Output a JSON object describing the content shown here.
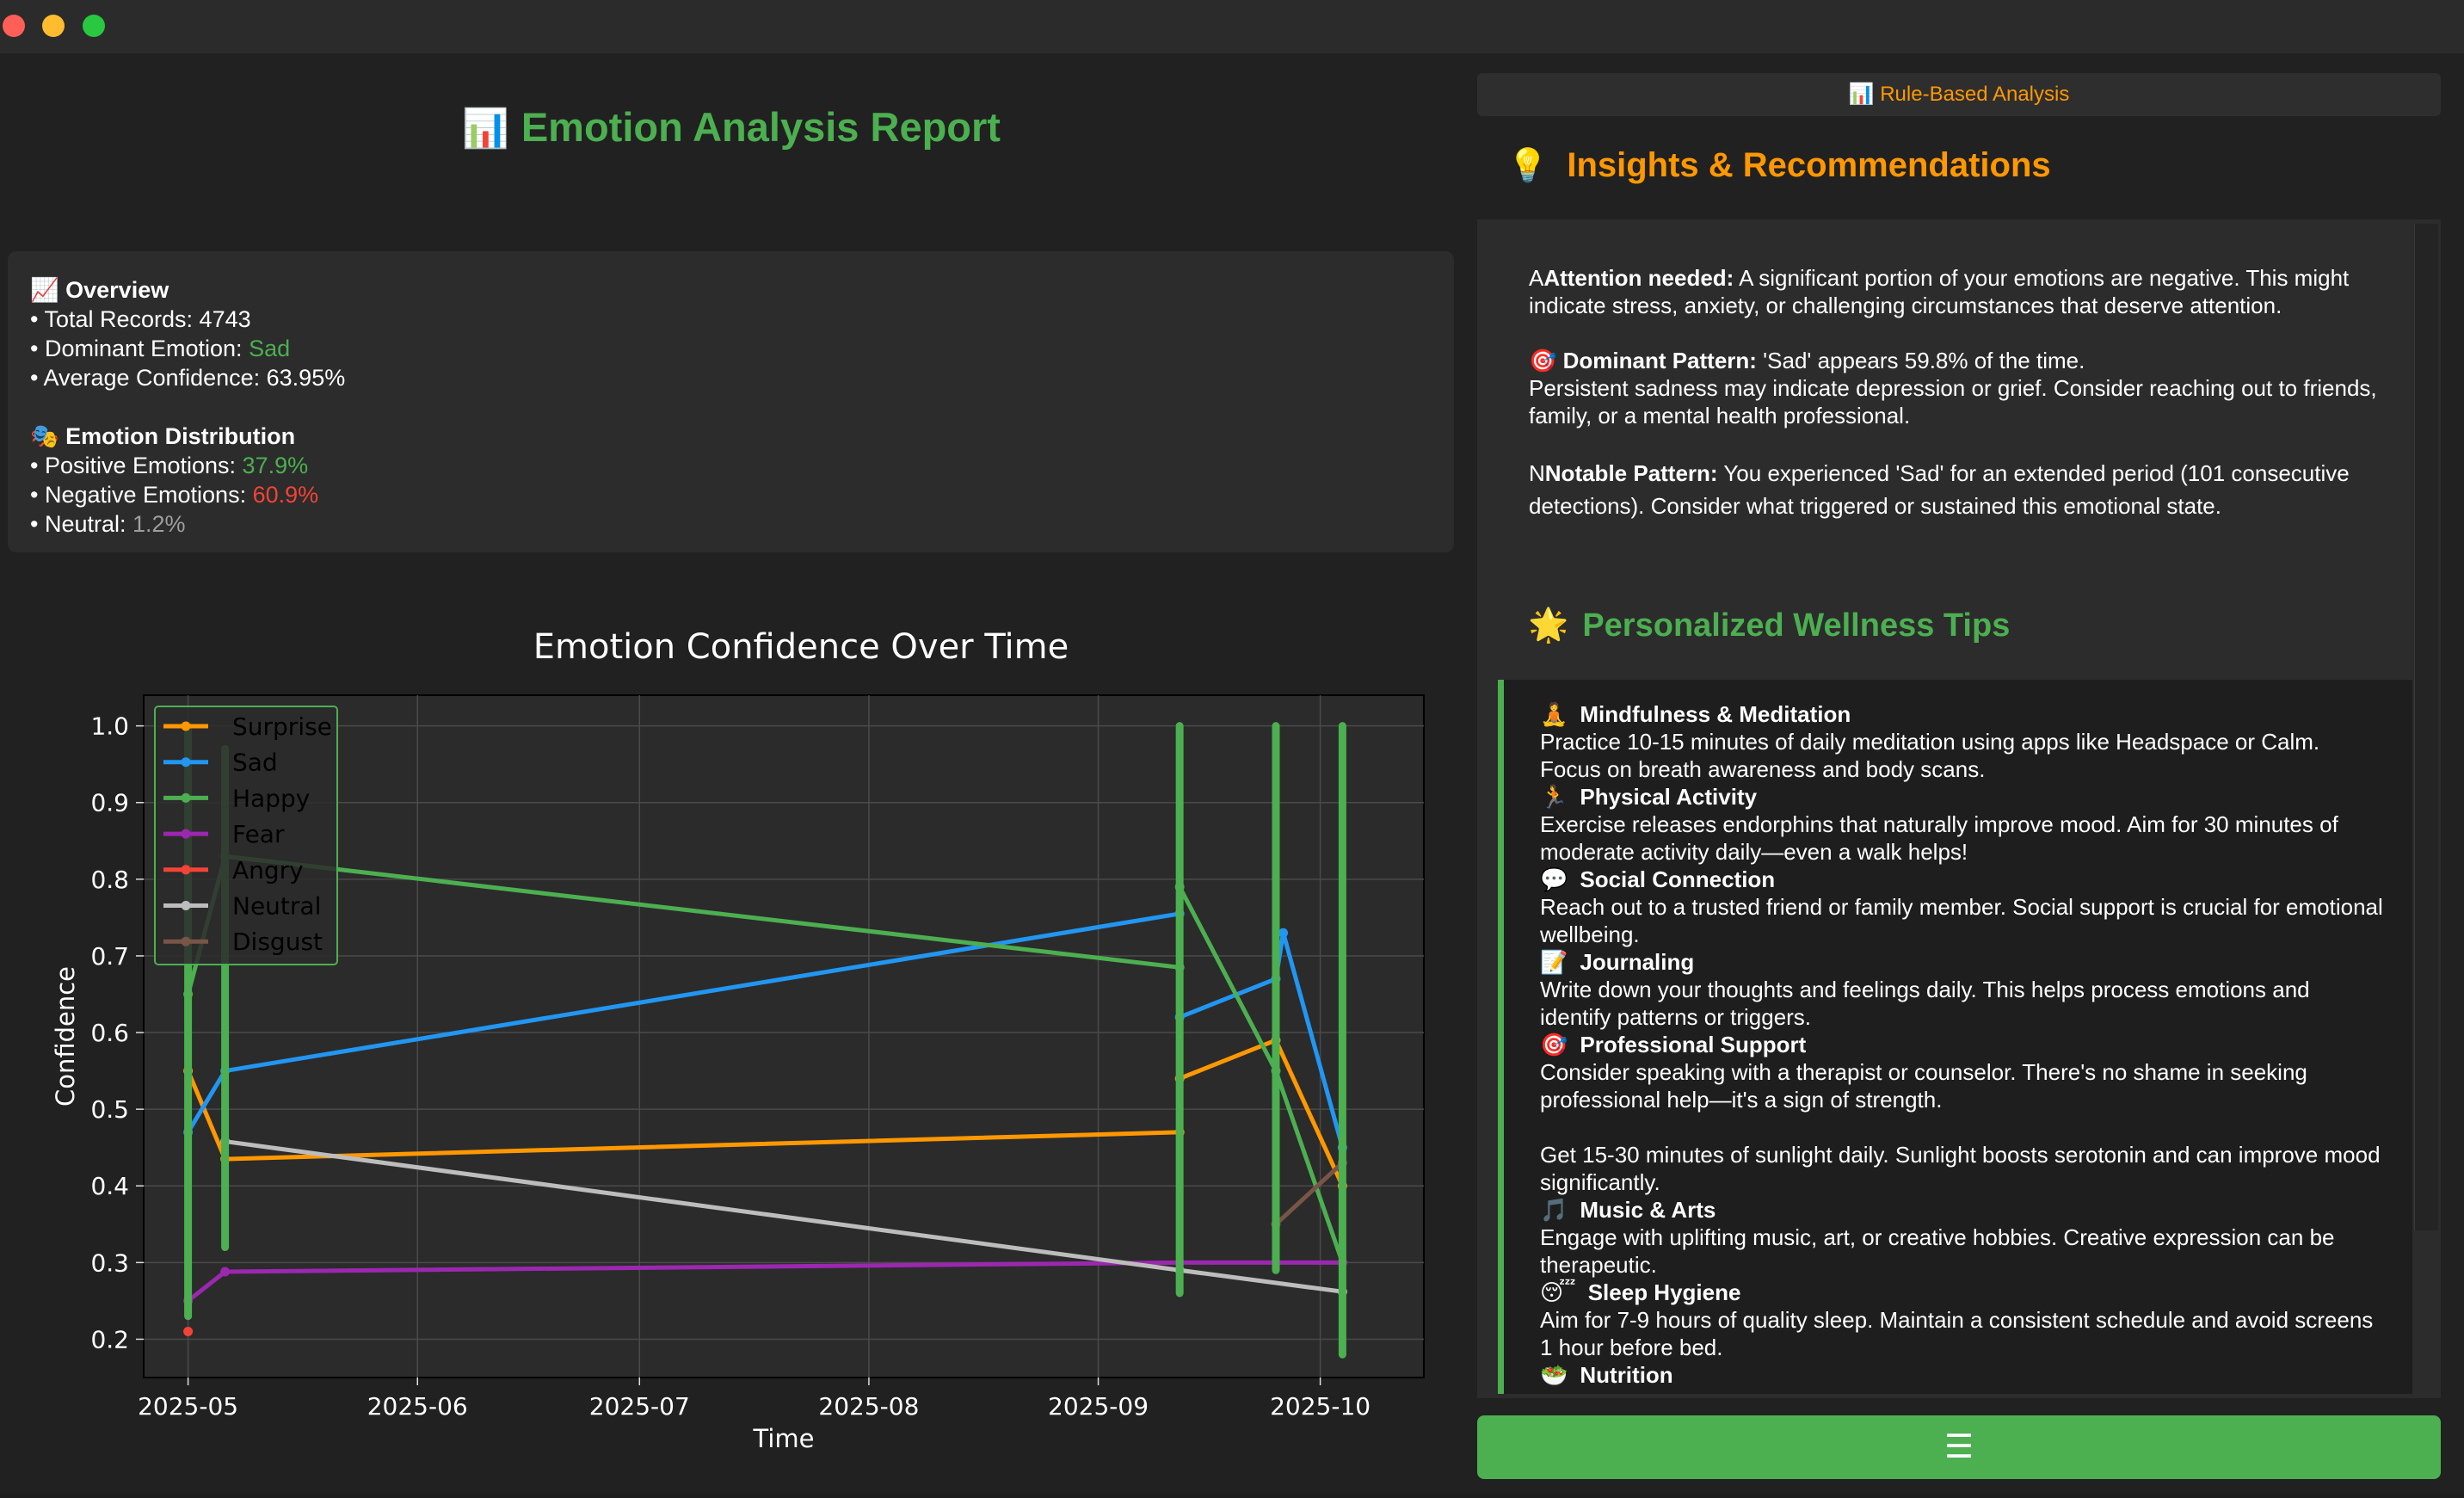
{
  "report": {
    "title": "Emotion Analysis Report",
    "title_icon": "bar-chart-emoji"
  },
  "overview": {
    "heading": "Overview",
    "total_label": "• Total Records: ",
    "total_value": "4743",
    "dominant_label": "• Dominant Emotion: ",
    "dominant_value": "Sad",
    "avg_label": "• Average Confidence: ",
    "avg_value": "63.95%",
    "dist_heading": "Emotion Distribution",
    "positive_label": "• Positive Emotions: ",
    "positive_value": "37.9%",
    "negative_label": "• Negative Emotions: ",
    "negative_value": "60.9%",
    "neutral_label": "• Neutral: ",
    "neutral_value": "1.2%"
  },
  "chart_data": {
    "type": "line",
    "title": "Emotion Confidence Over Time",
    "xlabel": "Time",
    "ylabel": "Confidence",
    "ylim": [
      0.15,
      1.04
    ],
    "xlim": [
      "2025-04-25",
      "2025-10-15"
    ],
    "xticks": [
      "2025-05",
      "2025-06",
      "2025-07",
      "2025-08",
      "2025-09",
      "2025-10"
    ],
    "yticks": [
      "0.2",
      "0.3",
      "0.4",
      "0.5",
      "0.6",
      "0.7",
      "0.8",
      "0.9",
      "1.0"
    ],
    "grid": true,
    "legend_position": "top-left",
    "series": [
      {
        "name": "Surprise",
        "color": "#ff9800",
        "points": [
          [
            "2025-05-01",
            0.55
          ],
          [
            "2025-05-06",
            0.435
          ],
          [
            "2025-09-12",
            0.47
          ],
          [
            "2025-09-12",
            0.54
          ],
          [
            "2025-09-25",
            0.59
          ],
          [
            "2025-10-04",
            0.4
          ]
        ]
      },
      {
        "name": "Sad",
        "color": "#2196f3",
        "points": [
          [
            "2025-05-01",
            0.47
          ],
          [
            "2025-05-06",
            0.55
          ],
          [
            "2025-09-12",
            0.755
          ],
          [
            "2025-09-12",
            0.62
          ],
          [
            "2025-09-25",
            0.67
          ],
          [
            "2025-09-26",
            0.73
          ],
          [
            "2025-10-04",
            0.45
          ]
        ]
      },
      {
        "name": "Happy",
        "color": "#4caf50",
        "points": [
          [
            "2025-05-01",
            0.65
          ],
          [
            "2025-05-06",
            0.83
          ],
          [
            "2025-09-12",
            0.685
          ],
          [
            "2025-09-12",
            0.79
          ],
          [
            "2025-09-25",
            0.55
          ],
          [
            "2025-10-04",
            0.3
          ]
        ]
      },
      {
        "name": "Fear",
        "color": "#9c27b0",
        "points": [
          [
            "2025-05-01",
            0.25
          ],
          [
            "2025-05-06",
            0.288
          ],
          [
            "2025-09-12",
            0.3
          ],
          [
            "2025-09-25",
            0.3
          ],
          [
            "2025-10-04",
            0.3
          ]
        ]
      },
      {
        "name": "Angry",
        "color": "#f44336",
        "points": [
          [
            "2025-05-01",
            0.21
          ]
        ]
      },
      {
        "name": "Neutral",
        "color": "#bdbdbd",
        "points": [
          [
            "2025-05-06",
            0.458
          ],
          [
            "2025-09-12",
            0.29
          ],
          [
            "2025-10-04",
            0.262
          ]
        ]
      },
      {
        "name": "Disgust",
        "color": "#795548",
        "points": [
          [
            "2025-09-25",
            0.35
          ],
          [
            "2025-10-04",
            0.43
          ]
        ]
      }
    ]
  },
  "right": {
    "mode_button": "Rule-Based Analysis",
    "insights_title": "Insights & Recommendations",
    "attention_prefix": "A",
    "attention_bold": "Attention needed:",
    "attention_text": " A significant portion of your emotions are negative. This might indicate stress, anxiety, or challenging circumstances that deserve attention.",
    "dominant_bold": "Dominant Pattern:",
    "dominant_text": " 'Sad' appears 59.8% of the time.",
    "dominant_text2": "Persistent sadness may indicate depression or grief. Consider reaching out to friends, family, or a mental health professional.",
    "notable_prefix": "N",
    "notable_bold": "Notable Pattern:",
    "notable_text": " You experienced 'Sad' for an extended period (101 consecutive detections). Consider what triggered or sustained this emotional state.",
    "tips_title": "Personalized Wellness Tips",
    "bottom_button_icon": "document-lines-icon"
  },
  "tips": [
    {
      "icon": "🧘",
      "name": "Mindfulness & Meditation",
      "text": "Practice 10-15 minutes of daily meditation using apps like Headspace or Calm. Focus on breath awareness and body scans."
    },
    {
      "icon": "🏃",
      "name": "Physical Activity",
      "text": "Exercise releases endorphins that naturally improve mood. Aim for 30 minutes of moderate activity daily—even a walk helps!"
    },
    {
      "icon": "💬",
      "name": "Social Connection",
      "text": "Reach out to a trusted friend or family member. Social support is crucial for emotional wellbeing."
    },
    {
      "icon": "📝",
      "name": "Journaling",
      "text": "Write down your thoughts and feelings daily. This helps process emotions and identify patterns or triggers."
    },
    {
      "icon": "🎯",
      "name": "Professional Support",
      "text": "Consider speaking with a therapist or counselor. There's no shame in seeking professional help—it's a sign of strength."
    },
    {
      "icon": "",
      "name": "",
      "text": "Get 15-30 minutes of sunlight daily. Sunlight boosts serotonin and can improve mood significantly."
    },
    {
      "icon": "🎵",
      "name": "Music & Arts",
      "text": "Engage with uplifting music, art, or creative hobbies. Creative expression can be therapeutic."
    },
    {
      "icon": "😴",
      "name": "Sleep Hygiene",
      "text": "Aim for 7-9 hours of quality sleep. Maintain a consistent schedule and avoid screens 1 hour before bed."
    },
    {
      "icon": "🥗",
      "name": "Nutrition",
      "text": ""
    }
  ]
}
